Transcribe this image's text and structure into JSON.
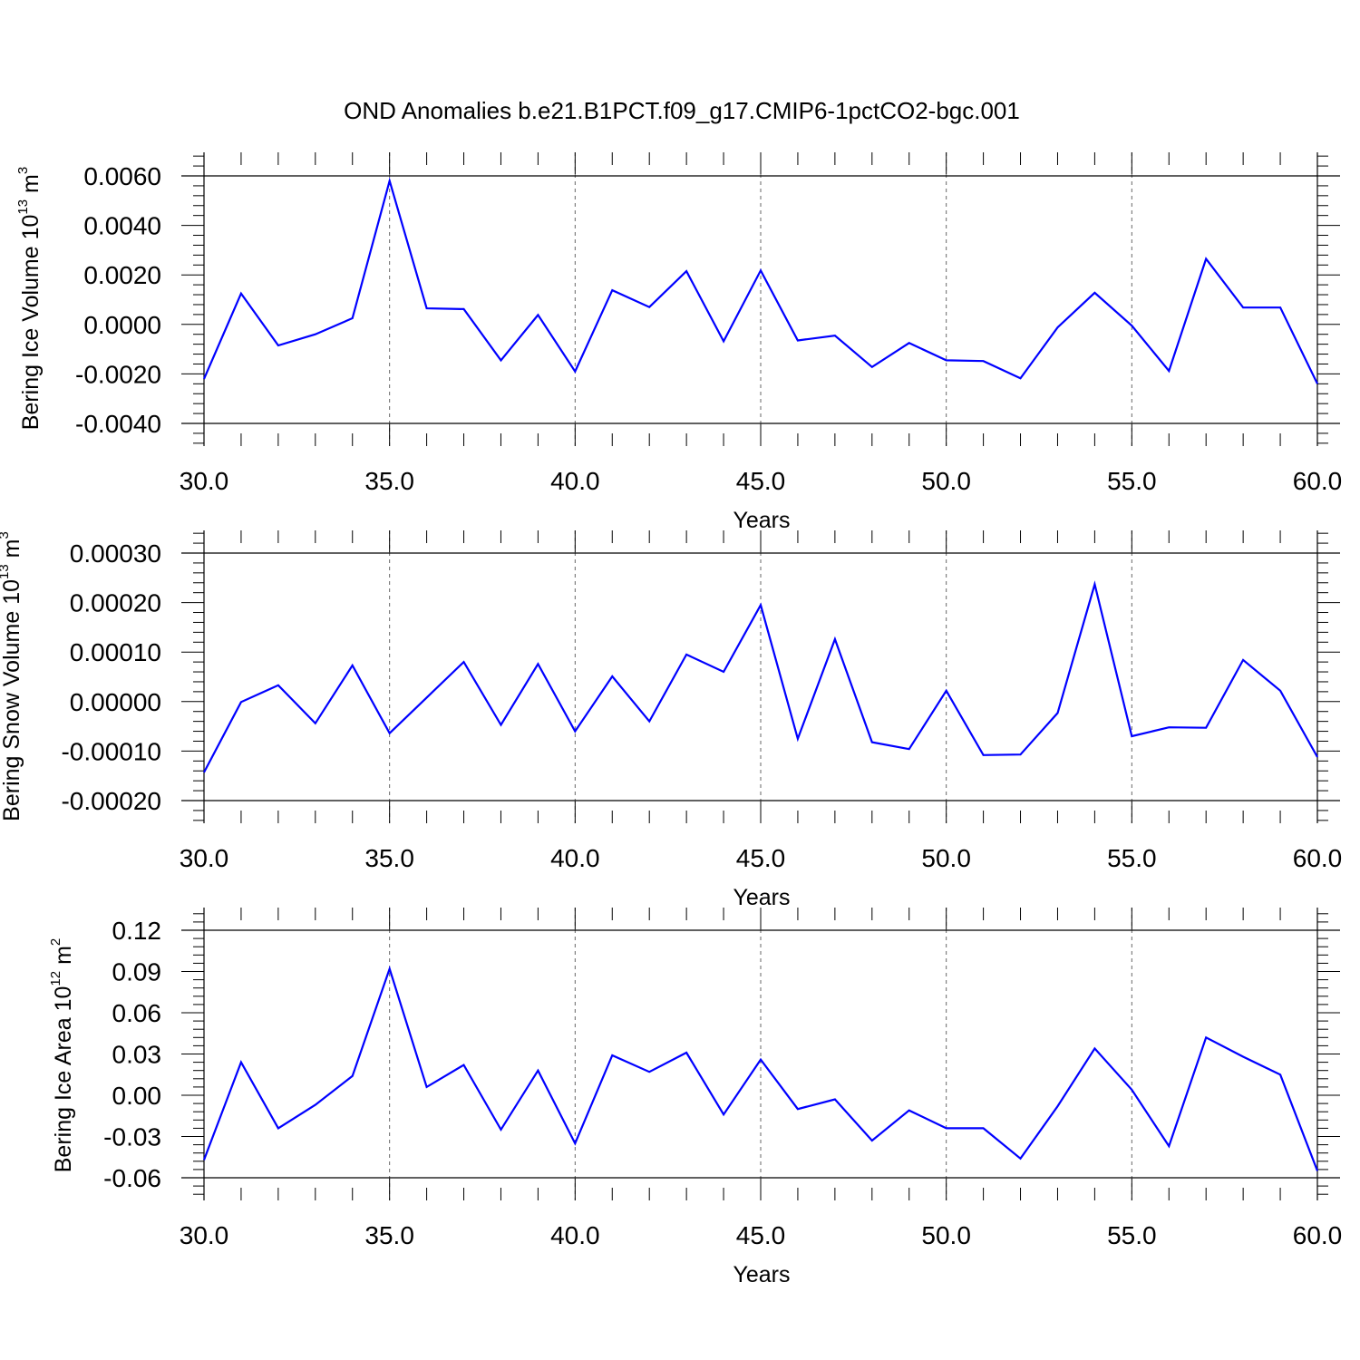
{
  "title": "OND Anomalies b.e21.B1PCT.f09_g17.CMIP6-1pctCO2-bgc.001",
  "series_color": "#0000ff",
  "chart_data": [
    {
      "type": "line",
      "xlabel": "Years",
      "ylabel": "Bering Ice Volume 10",
      "ylabel_exp": "13",
      "ylabel_unit": "m",
      "ylabel_unit_exp": "3",
      "xlim": [
        30,
        60
      ],
      "ylim": [
        -0.004,
        0.006
      ],
      "xticks": [
        30,
        35,
        40,
        45,
        50,
        55,
        60
      ],
      "xtick_labels": [
        "30.0",
        "35.0",
        "40.0",
        "45.0",
        "50.0",
        "55.0",
        "60.0"
      ],
      "yticks": [
        -0.004,
        -0.002,
        0.0,
        0.002,
        0.004,
        0.006
      ],
      "ytick_labels": [
        "-0.0040",
        "-0.0020",
        "0.0000",
        "0.0020",
        "0.0040",
        "0.0060"
      ],
      "grid": "vertical dashed at major x ticks",
      "x": [
        30,
        31,
        32,
        33,
        34,
        35,
        36,
        37,
        38,
        39,
        40,
        41,
        42,
        43,
        44,
        45,
        46,
        47,
        48,
        49,
        50,
        51,
        52,
        53,
        54,
        55,
        56,
        57,
        58,
        59,
        60
      ],
      "y": [
        -0.0022,
        0.00125,
        -0.00085,
        -0.0004,
        0.00025,
        0.0058,
        0.00065,
        0.00062,
        -0.00145,
        0.00038,
        -0.0019,
        0.00138,
        0.0007,
        0.00215,
        -0.00068,
        0.00218,
        -0.00065,
        -0.00045,
        -0.00172,
        -0.00075,
        -0.00145,
        -0.00148,
        -0.00218,
        -0.00012,
        0.00128,
        -5e-05,
        -0.00188,
        0.00265,
        0.00068,
        0.00068,
        -0.0024
      ]
    },
    {
      "type": "line",
      "xlabel": "Years",
      "ylabel": "Bering Snow Volume 10",
      "ylabel_exp": "13",
      "ylabel_unit": "m",
      "ylabel_unit_exp": "3",
      "xlim": [
        30,
        60
      ],
      "ylim": [
        -0.0002,
        0.0003
      ],
      "xticks": [
        30,
        35,
        40,
        45,
        50,
        55,
        60
      ],
      "xtick_labels": [
        "30.0",
        "35.0",
        "40.0",
        "45.0",
        "50.0",
        "55.0",
        "60.0"
      ],
      "yticks": [
        -0.0002,
        -0.0001,
        0.0,
        0.0001,
        0.0002,
        0.0003
      ],
      "ytick_labels": [
        "-0.00020",
        "-0.00010",
        "0.00000",
        "0.00010",
        "0.00020",
        "0.00030"
      ],
      "grid": "vertical dashed at major x ticks",
      "x": [
        30,
        31,
        32,
        33,
        34,
        35,
        36,
        37,
        38,
        39,
        40,
        41,
        42,
        43,
        44,
        45,
        46,
        47,
        48,
        49,
        50,
        51,
        52,
        53,
        54,
        55,
        56,
        57,
        58,
        59,
        60
      ],
      "y": [
        -0.000143,
        -1e-06,
        3.3e-05,
        -4.4e-05,
        7.3e-05,
        -6.4e-05,
        8e-06,
        8e-05,
        -4.7e-05,
        7.6e-05,
        -6e-05,
        5.1e-05,
        -4e-05,
        9.5e-05,
        6e-05,
        0.000195,
        -7.5e-05,
        0.000126,
        -8.2e-05,
        -9.6e-05,
        2.2e-05,
        -0.000108,
        -0.000107,
        -2.3e-05,
        0.000237,
        -7e-05,
        -5.2e-05,
        -5.3e-05,
        8.4e-05,
        2.2e-05,
        -0.000112
      ]
    },
    {
      "type": "line",
      "xlabel": "Years",
      "ylabel": "Bering Ice Area 10",
      "ylabel_exp": "12",
      "ylabel_unit": "m",
      "ylabel_unit_exp": "2",
      "xlim": [
        30,
        60
      ],
      "ylim": [
        -0.06,
        0.12
      ],
      "xticks": [
        30,
        35,
        40,
        45,
        50,
        55,
        60
      ],
      "xtick_labels": [
        "30.0",
        "35.0",
        "40.0",
        "45.0",
        "50.0",
        "55.0",
        "60.0"
      ],
      "yticks": [
        -0.06,
        -0.03,
        0.0,
        0.03,
        0.06,
        0.09,
        0.12
      ],
      "ytick_labels": [
        "-0.06",
        "-0.03",
        "0.00",
        "0.03",
        "0.06",
        "0.09",
        "0.12"
      ],
      "grid": "vertical dashed at major x ticks",
      "x": [
        30,
        31,
        32,
        33,
        34,
        35,
        36,
        37,
        38,
        39,
        40,
        41,
        42,
        43,
        44,
        45,
        46,
        47,
        48,
        49,
        50,
        51,
        52,
        53,
        54,
        55,
        56,
        57,
        58,
        59,
        60
      ],
      "y": [
        -0.047,
        0.024,
        -0.024,
        -0.007,
        0.014,
        0.092,
        0.006,
        0.022,
        -0.025,
        0.018,
        -0.035,
        0.029,
        0.017,
        0.031,
        -0.014,
        0.026,
        -0.01,
        -0.003,
        -0.033,
        -0.011,
        -0.024,
        -0.024,
        -0.046,
        -0.008,
        0.034,
        0.004,
        -0.037,
        0.042,
        0.028,
        0.015,
        -0.055
      ]
    }
  ]
}
